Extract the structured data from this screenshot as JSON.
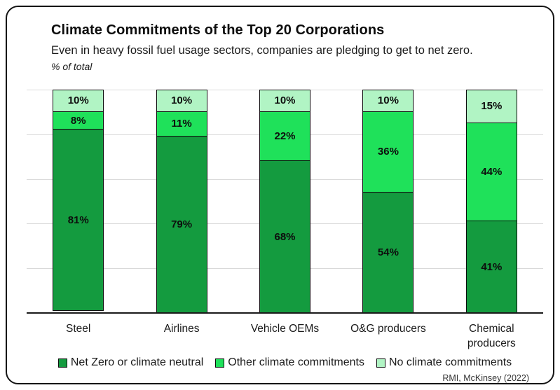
{
  "header": {
    "title": "Climate Commitments of the Top 20 Corporations",
    "subtitle": "Even in heavy fossil fuel usage sectors, companies are pledging to get to net zero.",
    "unit_label": "% of total"
  },
  "chart_data": {
    "type": "bar",
    "stacked": true,
    "orientation": "vertical",
    "categories": [
      "Steel",
      "Airlines",
      "Vehicle OEMs",
      "O&G producers",
      "Chemical producers"
    ],
    "series": [
      {
        "name": "Net Zero or climate neutral",
        "color": "#149B3F",
        "values": [
          81,
          79,
          68,
          54,
          41
        ]
      },
      {
        "name": "Other climate commitments",
        "color": "#1FE15A",
        "values": [
          8,
          11,
          22,
          36,
          44
        ]
      },
      {
        "name": "No climate commitments",
        "color": "#B1F4C4",
        "values": [
          10,
          10,
          10,
          10,
          15
        ]
      }
    ],
    "value_suffix": "%",
    "ylim": [
      0,
      100
    ],
    "gridlines_pct": [
      20,
      40,
      60,
      80,
      100
    ],
    "grid": true,
    "legend_position": "bottom"
  },
  "colors": {
    "grid": "#d9d9d9",
    "axis": "#1a1a1a",
    "segment_border": "#0d0d0d",
    "card_border": "#151515"
  },
  "source": "RMI, McKinsey (2022)"
}
